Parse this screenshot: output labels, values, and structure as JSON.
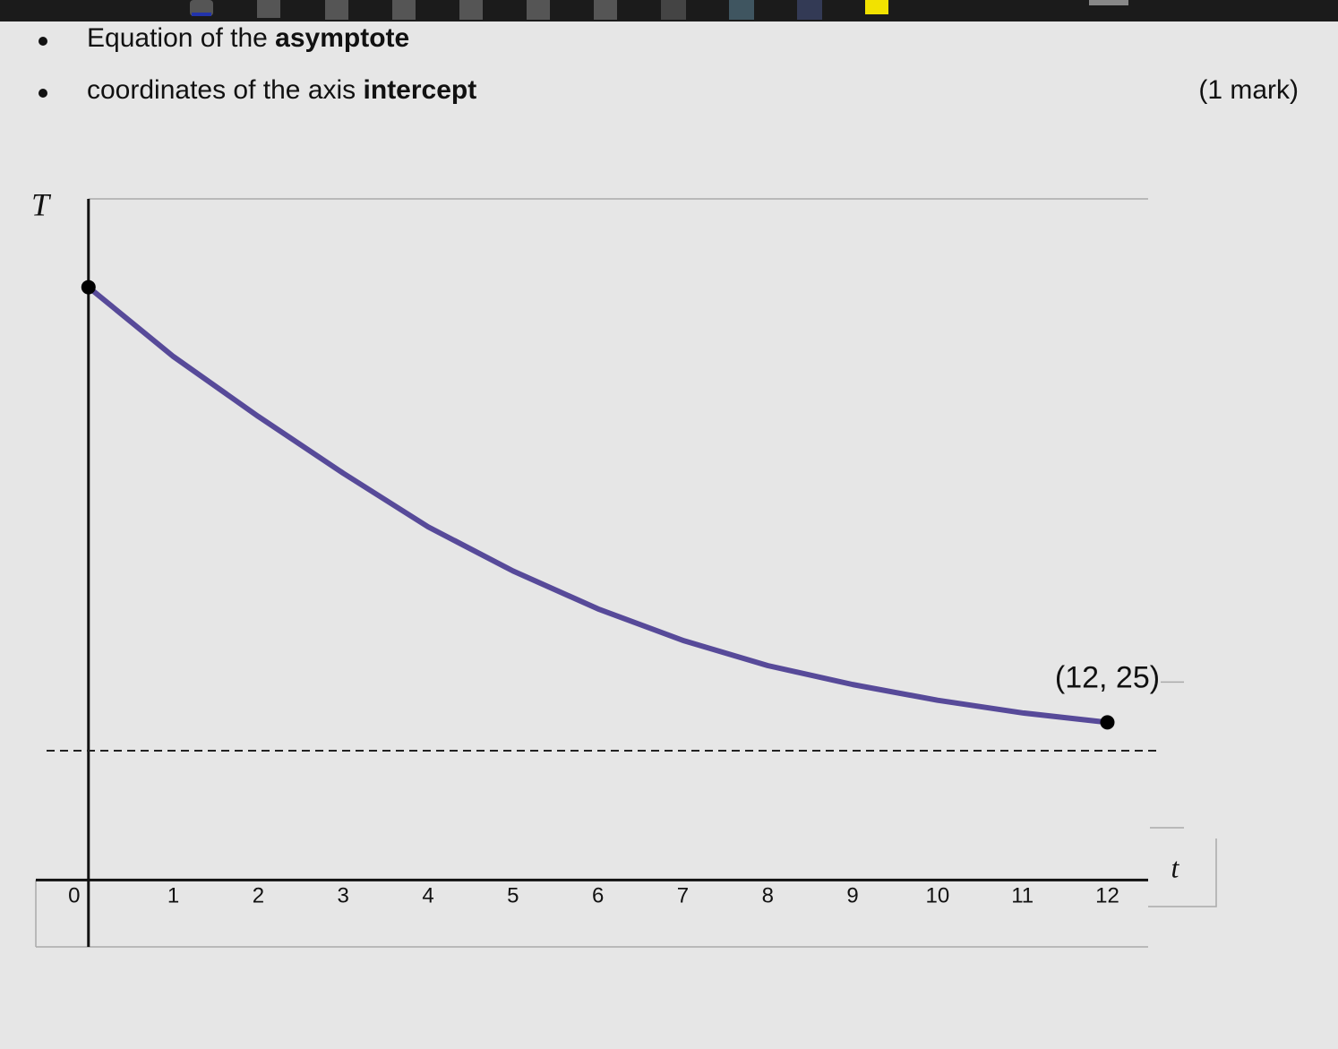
{
  "bullets": [
    {
      "text": "Equation of the",
      "bold": "asymptote"
    },
    {
      "text": "coordinates of the axis",
      "bold": "intercept"
    }
  ],
  "marks": "(1 mark)",
  "chart_data": {
    "type": "line",
    "ylabel": "T",
    "xlabel": "t",
    "annotation": "(12, 25)",
    "x": [
      0,
      1,
      2,
      3,
      4,
      5,
      6,
      7,
      8,
      9,
      10,
      11,
      12
    ],
    "series": [
      {
        "color": "#574a99",
        "values": [
          94,
          83,
          73.5,
          64.5,
          56,
          49,
          43,
          38,
          34,
          31,
          28.5,
          26.5,
          25
        ]
      }
    ],
    "asymptote": 20.5,
    "xlim": [
      -0.62,
      12.48
    ],
    "ylim": [
      -10.6,
      108
    ],
    "xticks": [
      0,
      1,
      2,
      3,
      4,
      5,
      6,
      7,
      8,
      9,
      10,
      11,
      12
    ]
  }
}
